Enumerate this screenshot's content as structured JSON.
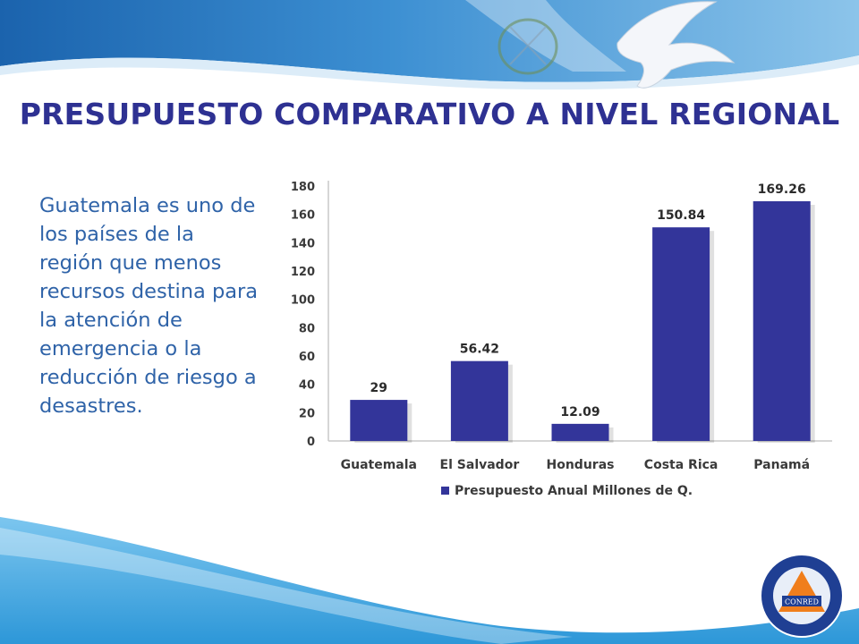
{
  "slide": {
    "title": "PRESUPUESTO COMPARATIVO A NIVEL REGIONAL",
    "body_text": "Guatemala es uno de los países de la región que menos recursos destina para la atención de emergencia o la reducción de riesgo a desastres.",
    "logo": {
      "center_text": "CONRED",
      "ring_text_top": "COORDINADORA NACIONAL PARA LA REDUCCIÓN DE DESASTRES",
      "ring_text_bottom": "GUATEMALA, C.A."
    }
  },
  "colors": {
    "title": "#2e3192",
    "body_text": "#2f63a8",
    "bar": "#33359a",
    "header_blue": "#1f6fb8",
    "footer_blue": "#3aa6e0"
  },
  "chart_data": {
    "type": "bar",
    "categories": [
      "Guatemala",
      "El Salvador",
      "Honduras",
      "Costa Rica",
      "Panamá"
    ],
    "series": [
      {
        "name": "Presupuesto Anual Millones de Q.",
        "values": [
          29,
          56.42,
          12.09,
          150.84,
          169.26
        ]
      }
    ],
    "data_labels": [
      "29",
      "56.42",
      "12.09",
      "150.84",
      "169.26"
    ],
    "yticks": [
      0,
      20,
      40,
      60,
      80,
      100,
      120,
      140,
      160,
      180
    ],
    "ylim": [
      0,
      180
    ],
    "title": "",
    "xlabel": "",
    "ylabel": "",
    "legend_position": "bottom",
    "grid": false
  }
}
